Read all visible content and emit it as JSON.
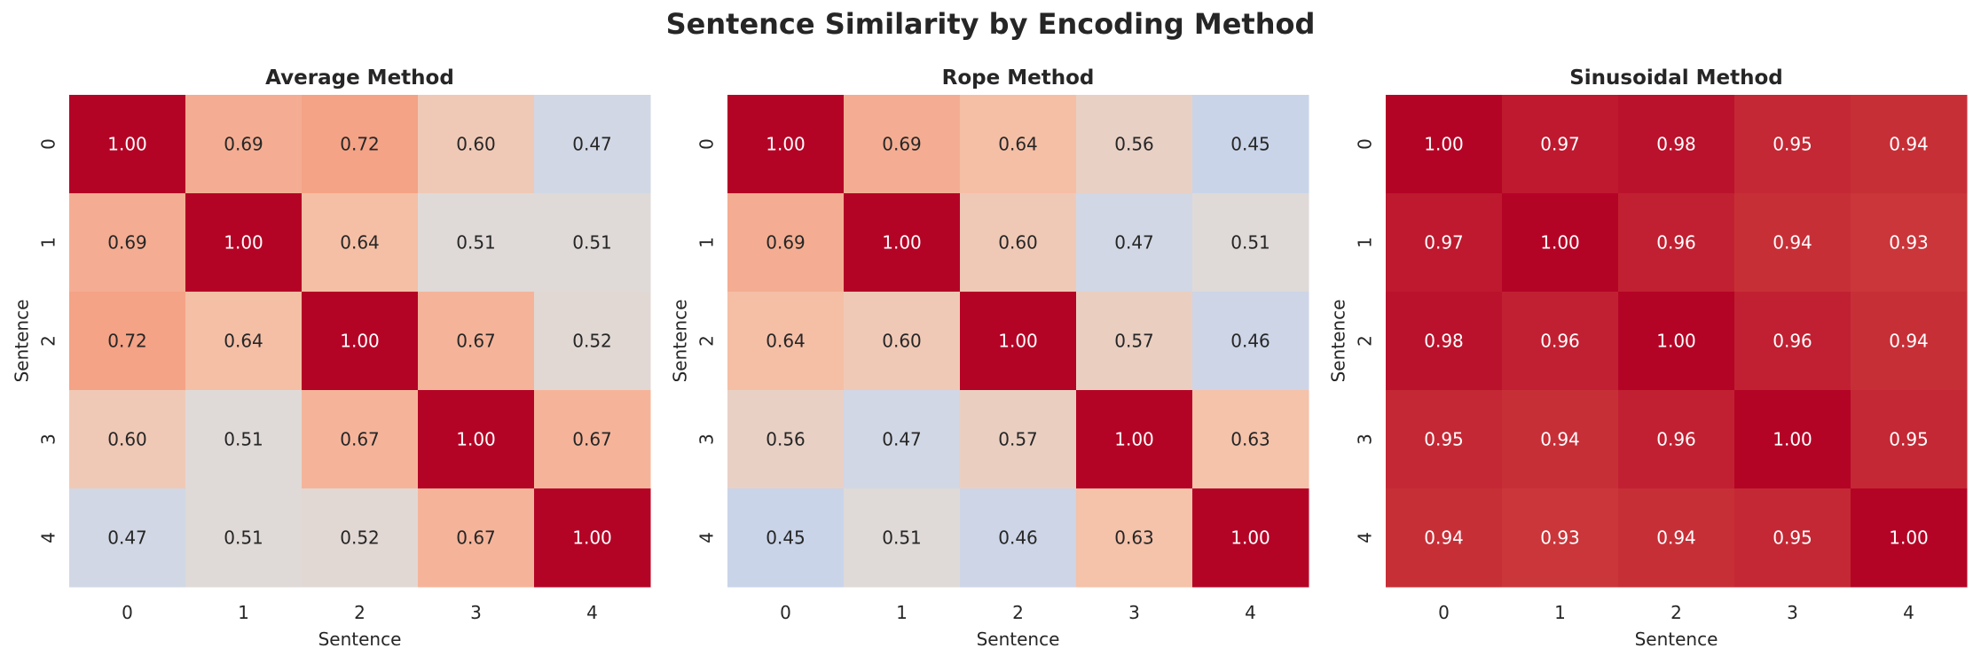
{
  "title": "Sentence Similarity by Encoding Method",
  "chart_data": [
    {
      "type": "heatmap",
      "title": "Average Method",
      "xlabel": "Sentence",
      "ylabel": "Sentence",
      "x_ticks": [
        "0",
        "1",
        "2",
        "3",
        "4"
      ],
      "y_ticks": [
        "0",
        "1",
        "2",
        "3",
        "4"
      ],
      "colormap": "coolwarm",
      "vmin": 0,
      "vmax": 1,
      "colorbar": false,
      "values": [
        [
          1.0,
          0.69,
          0.72,
          0.6,
          0.47
        ],
        [
          0.69,
          1.0,
          0.64,
          0.51,
          0.51
        ],
        [
          0.72,
          0.64,
          1.0,
          0.67,
          0.52
        ],
        [
          0.6,
          0.51,
          0.67,
          1.0,
          0.67
        ],
        [
          0.47,
          0.51,
          0.52,
          0.67,
          1.0
        ]
      ]
    },
    {
      "type": "heatmap",
      "title": "Rope Method",
      "xlabel": "Sentence",
      "ylabel": "Sentence",
      "x_ticks": [
        "0",
        "1",
        "2",
        "3",
        "4"
      ],
      "y_ticks": [
        "0",
        "1",
        "2",
        "3",
        "4"
      ],
      "colormap": "coolwarm",
      "vmin": 0,
      "vmax": 1,
      "colorbar": false,
      "values": [
        [
          1.0,
          0.69,
          0.64,
          0.56,
          0.45
        ],
        [
          0.69,
          1.0,
          0.6,
          0.47,
          0.51
        ],
        [
          0.64,
          0.6,
          1.0,
          0.57,
          0.46
        ],
        [
          0.56,
          0.47,
          0.57,
          1.0,
          0.63
        ],
        [
          0.45,
          0.51,
          0.46,
          0.63,
          1.0
        ]
      ]
    },
    {
      "type": "heatmap",
      "title": "Sinusoidal Method",
      "xlabel": "Sentence",
      "ylabel": "Sentence",
      "x_ticks": [
        "0",
        "1",
        "2",
        "3",
        "4"
      ],
      "y_ticks": [
        "0",
        "1",
        "2",
        "3",
        "4"
      ],
      "colormap": "coolwarm",
      "vmin": 0,
      "vmax": 1,
      "colorbar": false,
      "values": [
        [
          1.0,
          0.97,
          0.98,
          0.95,
          0.94
        ],
        [
          0.97,
          1.0,
          0.96,
          0.94,
          0.93
        ],
        [
          0.98,
          0.96,
          1.0,
          0.96,
          0.94
        ],
        [
          0.95,
          0.94,
          0.96,
          1.0,
          0.95
        ],
        [
          0.94,
          0.93,
          0.94,
          0.95,
          1.0
        ]
      ]
    }
  ]
}
